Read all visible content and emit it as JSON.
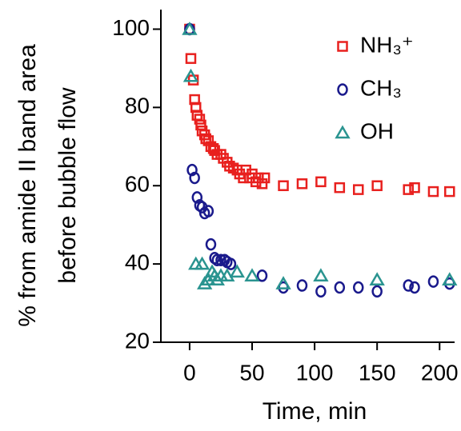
{
  "chart_data": {
    "type": "scatter",
    "xlabel": "Time, min",
    "ylabel": [
      "% from amide II band area",
      "before bubble flow"
    ],
    "xlim": [
      -23,
      212
    ],
    "ylim": [
      20,
      105
    ],
    "xticks": [
      0,
      50,
      100,
      150,
      200
    ],
    "yticks": [
      20,
      40,
      60,
      80,
      100
    ],
    "legend": "upper right",
    "series": [
      {
        "name": "NH₃⁺",
        "color": "#e8201e",
        "marker": "square",
        "x": [
          0,
          1,
          3,
          4,
          5,
          6,
          8,
          9,
          10,
          12,
          13,
          15,
          17,
          19,
          20,
          22,
          25,
          27,
          30,
          32,
          35,
          38,
          40,
          43,
          45,
          48,
          50,
          53,
          55,
          58,
          60,
          75,
          90,
          105,
          120,
          135,
          150,
          175,
          180,
          195,
          208
        ],
        "values": [
          100,
          92.5,
          87,
          82,
          80,
          78,
          77,
          75.5,
          74,
          73,
          72,
          71.5,
          70,
          69.5,
          69,
          68,
          68,
          67,
          66,
          65,
          64.5,
          64,
          63,
          62,
          64,
          62,
          63,
          61,
          62,
          60.5,
          62,
          60,
          60.5,
          61,
          59.5,
          59,
          60,
          59,
          59.5,
          58.5,
          58.5
        ]
      },
      {
        "name": "CH₃",
        "color": "#1a1a8c",
        "marker": "circle",
        "x": [
          0,
          2,
          4,
          6,
          8,
          10,
          12,
          15,
          17,
          20,
          22,
          25,
          28,
          30,
          33,
          58,
          75,
          90,
          105,
          120,
          135,
          150,
          175,
          180,
          195,
          208
        ],
        "values": [
          100,
          64,
          62,
          57,
          55,
          54.5,
          53,
          53.5,
          45,
          41.5,
          41,
          41,
          41,
          40.5,
          40,
          37,
          34,
          34.5,
          33,
          34,
          34,
          33,
          34.5,
          34,
          35.5,
          35
        ]
      },
      {
        "name": "OH",
        "color": "#2a9490",
        "marker": "triangle",
        "x": [
          0,
          1,
          5,
          10,
          12,
          15,
          18,
          20,
          22,
          25,
          30,
          38,
          50,
          75,
          105,
          150,
          208
        ],
        "values": [
          100,
          88,
          40,
          40,
          35,
          36,
          38,
          37,
          36,
          37,
          37,
          38,
          37,
          35,
          37,
          36,
          36
        ]
      }
    ]
  }
}
